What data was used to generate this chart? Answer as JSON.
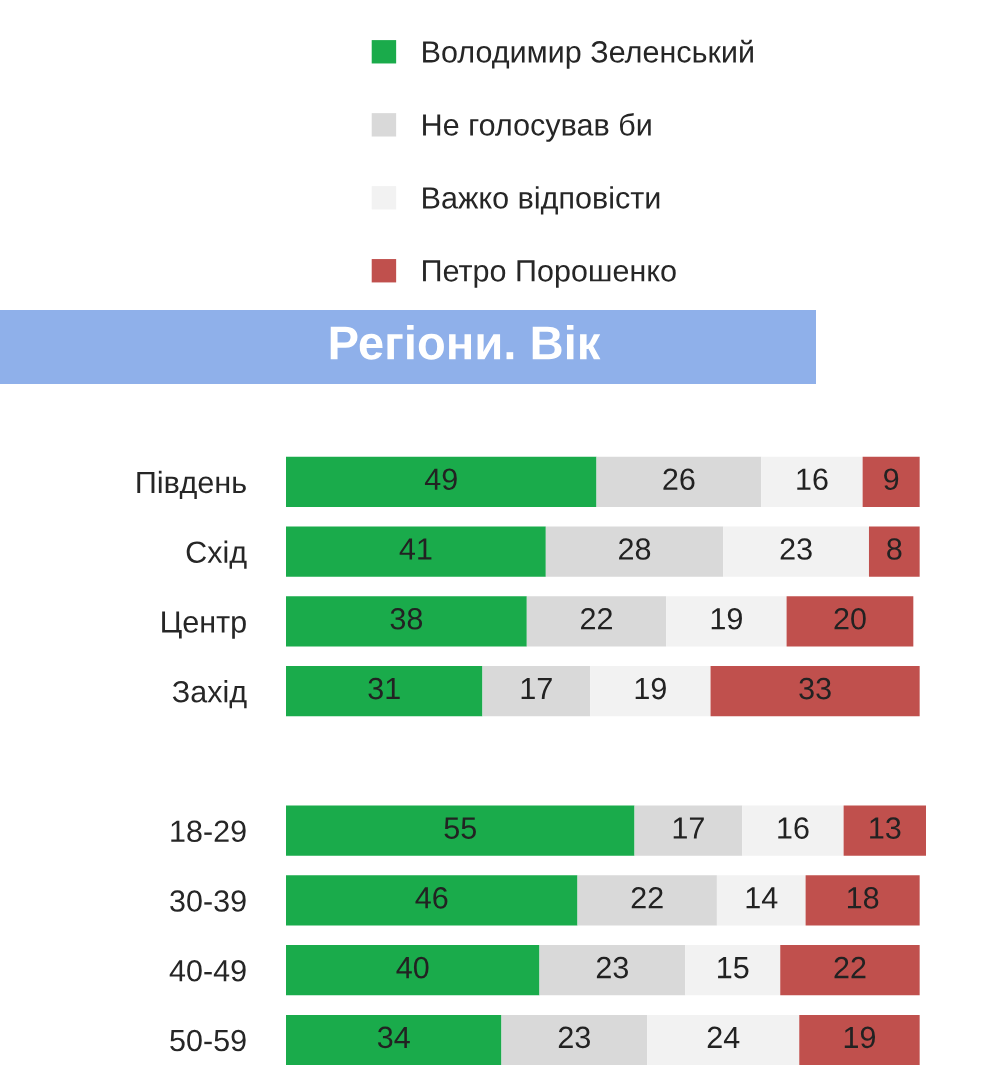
{
  "chart_data": {
    "type": "bar",
    "orientation": "horizontal",
    "stacked": true,
    "data_labels": true,
    "title": "Регіони. Вік",
    "legend": "top",
    "grid": false,
    "categories": [
      "Південь",
      "Схід",
      "Центр",
      "Захід",
      null,
      "18-29",
      "30-39",
      "40-49",
      "50-59"
    ],
    "series": [
      {
        "name": "Володимир Зеленський",
        "color": "#1aab4b",
        "values": [
          49,
          41,
          38,
          31,
          null,
          55,
          46,
          40,
          34
        ]
      },
      {
        "name": "Не голосував би",
        "color": "#d9d9d9",
        "values": [
          26,
          28,
          22,
          17,
          null,
          17,
          22,
          23,
          23
        ]
      },
      {
        "name": "Важко відповісти",
        "color": "#f2f2f2",
        "values": [
          16,
          23,
          19,
          19,
          null,
          16,
          14,
          15,
          24
        ]
      },
      {
        "name": "Петро Порошенко",
        "color": "#c0504d",
        "values": [
          9,
          8,
          20,
          33,
          null,
          13,
          18,
          22,
          19
        ]
      }
    ]
  }
}
